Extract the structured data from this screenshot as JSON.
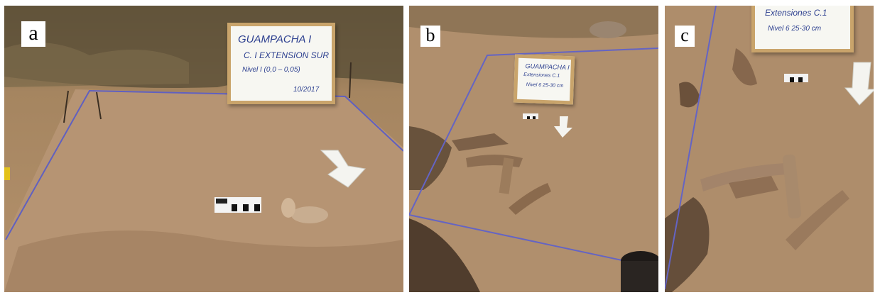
{
  "figure": {
    "panels": [
      {
        "label": "a",
        "board": {
          "line1": "GUAMPACHA I",
          "line2": "C. I  EXTENSION SUR",
          "line3": "Nivel I (0,0 – 0,05)",
          "line4": "10/2017"
        }
      },
      {
        "label": "b",
        "board": {
          "line1": "GUAMPACHA I",
          "line2": "Extensiones C.1",
          "line3": "Nivel 6  25-30 cm"
        }
      },
      {
        "label": "c",
        "board": {
          "line1": "Extensiones C.1",
          "line2": "Nivel 6  25-30 cm"
        }
      }
    ]
  }
}
